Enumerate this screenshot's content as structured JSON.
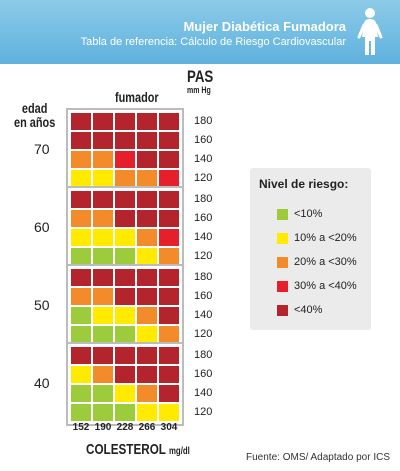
{
  "header": {
    "title": "Mujer Diabética Fumadora",
    "subtitle": "Tabla de referencia: Cálculo de Riesgo Cardiovascular",
    "icon": "woman-icon"
  },
  "colors": {
    "header_gradient_top": "#8ccbe8",
    "header_gradient_bottom": "#5fb1de",
    "risk_lt10": "#9ccb3b",
    "risk_10_20": "#ffea00",
    "risk_20_30": "#f48b2a",
    "risk_30_40": "#e51f2b",
    "risk_ge40": "#b3242c"
  },
  "chart_data": {
    "type": "heatmap",
    "labels": {
      "smoker": "fumador",
      "sbp": "PAS",
      "sbp_unit": "mm Hg",
      "age": "edad\nen años",
      "cholesterol": "COLESTEROL",
      "cholesterol_unit": "mg/dl"
    },
    "cholesterol": [
      "152",
      "190",
      "228",
      "266",
      "304"
    ],
    "sbp": [
      "180",
      "160",
      "140",
      "120"
    ],
    "groups": [
      {
        "age": "70",
        "grid": [
          [
            4,
            4,
            4,
            4,
            4
          ],
          [
            4,
            4,
            4,
            4,
            4
          ],
          [
            2,
            2,
            3,
            4,
            4
          ],
          [
            1,
            1,
            2,
            2,
            3
          ]
        ]
      },
      {
        "age": "60",
        "grid": [
          [
            4,
            4,
            4,
            4,
            4
          ],
          [
            2,
            2,
            4,
            4,
            4
          ],
          [
            1,
            1,
            1,
            2,
            3
          ],
          [
            0,
            0,
            0,
            1,
            2
          ]
        ]
      },
      {
        "age": "50",
        "grid": [
          [
            4,
            4,
            4,
            4,
            4
          ],
          [
            2,
            2,
            4,
            4,
            4
          ],
          [
            0,
            1,
            1,
            2,
            4
          ],
          [
            0,
            0,
            0,
            1,
            2
          ]
        ]
      },
      {
        "age": "40",
        "grid": [
          [
            4,
            4,
            4,
            4,
            4
          ],
          [
            1,
            2,
            4,
            4,
            4
          ],
          [
            0,
            0,
            1,
            2,
            4
          ],
          [
            0,
            0,
            0,
            1,
            1
          ]
        ]
      }
    ]
  },
  "legend": {
    "title": "Nivel de riesgo:",
    "items": [
      {
        "label": "<10%",
        "color": "#9ccb3b"
      },
      {
        "label": "10% a <20%",
        "color": "#ffea00"
      },
      {
        "label": "20% a <30%",
        "color": "#f48b2a"
      },
      {
        "label": "30% a <40%",
        "color": "#e51f2b"
      },
      {
        "label": "<40%",
        "color": "#b3242c"
      }
    ]
  },
  "source": "Fuente:  OMS/ Adaptado por ICS"
}
